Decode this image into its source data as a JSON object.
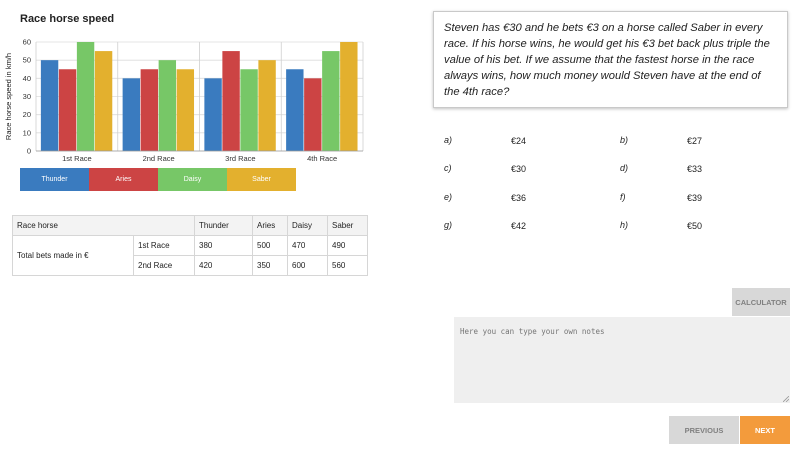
{
  "chart_data": {
    "type": "bar",
    "title": "Race horse speed",
    "ylabel": "Race horse speed in km/h",
    "xlabel": "",
    "categories": [
      "1st Race",
      "2nd Race",
      "3rd Race",
      "4th Race"
    ],
    "ylim": [
      0,
      60
    ],
    "yticks": [
      0,
      10,
      20,
      30,
      40,
      50,
      60
    ],
    "grid": true,
    "legend_position": "bottom",
    "series": [
      {
        "name": "Thunder",
        "color": "#3a7bbf",
        "values": [
          50,
          40,
          40,
          45
        ]
      },
      {
        "name": "Aries",
        "color": "#cc4444",
        "values": [
          45,
          45,
          55,
          40
        ]
      },
      {
        "name": "Daisy",
        "color": "#77c767",
        "values": [
          60,
          50,
          45,
          55
        ]
      },
      {
        "name": "Saber",
        "color": "#e3b02e",
        "values": [
          55,
          45,
          50,
          60
        ]
      }
    ]
  },
  "table": {
    "header": [
      "Race horse",
      "Thunder",
      "Aries",
      "Daisy",
      "Saber"
    ],
    "group_label": "Total bets made in €",
    "rows": [
      {
        "race": "1st Race",
        "values": [
          "380",
          "500",
          "470",
          "490"
        ]
      },
      {
        "race": "2nd Race",
        "values": [
          "420",
          "350",
          "600",
          "560"
        ]
      }
    ]
  },
  "question": "Steven has €30 and he bets €3 on a horse called Saber in every race. If his horse wins, he would get his €3 bet back plus triple the value of his bet. If we assume that the fastest horse in the race always wins, how much money would Steven have at the end of the 4th race?",
  "options": [
    {
      "letter": "a)",
      "value": "€24"
    },
    {
      "letter": "b)",
      "value": "€27"
    },
    {
      "letter": "c)",
      "value": "€30"
    },
    {
      "letter": "d)",
      "value": "€33"
    },
    {
      "letter": "e)",
      "value": "€36"
    },
    {
      "letter": "f)",
      "value": "€39"
    },
    {
      "letter": "g)",
      "value": "€42"
    },
    {
      "letter": "h)",
      "value": "€50"
    }
  ],
  "calculator_label": "CALCULATOR",
  "notes_placeholder": "Here you can type your own notes",
  "previous_label": "PREVIOUS",
  "next_label": "NEXT"
}
